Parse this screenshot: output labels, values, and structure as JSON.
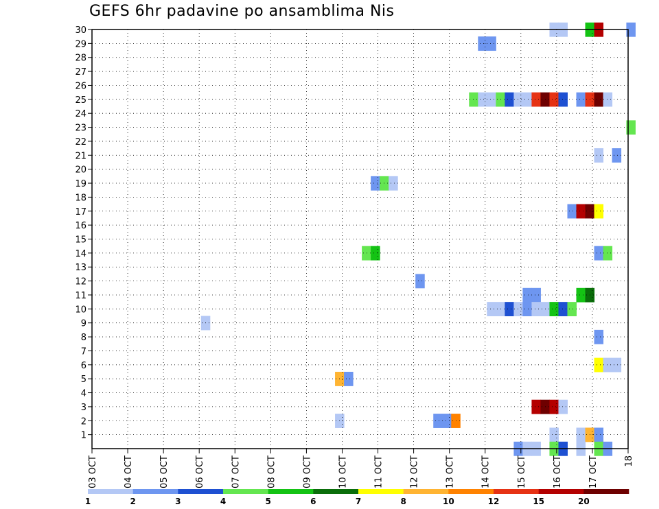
{
  "chart_data": {
    "type": "heatmap",
    "title": "GEFS 6hr padavine po ansamblima Nis",
    "xlabel": "",
    "ylabel": "",
    "x_tick_labels": [
      "03 OCT",
      "04 OCT",
      "05 OCT",
      "06 OCT",
      "07 OCT",
      "08 OCT",
      "09 OCT",
      "10 OCT",
      "11 OCT",
      "12 OCT",
      "13 OCT",
      "14 OCT",
      "15 OCT",
      "16 OCT",
      "17 OCT",
      "18"
    ],
    "y_tick_labels": [
      "1",
      "2",
      "3",
      "4",
      "5",
      "6",
      "7",
      "8",
      "9",
      "10",
      "11",
      "12",
      "13",
      "14",
      "15",
      "16",
      "17",
      "18",
      "19",
      "20",
      "21",
      "22",
      "23",
      "24",
      "25",
      "26",
      "27",
      "28",
      "29",
      "30"
    ],
    "xlim_days": [
      0,
      15
    ],
    "ylim": [
      0,
      30
    ],
    "grid": true,
    "colorbar": {
      "colors": [
        "#b4c8f5",
        "#6e96f0",
        "#1e50d2",
        "#64e650",
        "#14c314",
        "#0a6e0a",
        "#ffff00",
        "#ffb432",
        "#ff8200",
        "#e63214",
        "#b40000",
        "#6e0000"
      ],
      "labels": [
        "1",
        "2",
        "3",
        "4",
        "5",
        "6",
        "7",
        "8",
        "10",
        "12",
        "15",
        "20"
      ]
    },
    "cells": [
      {
        "t": 12.8,
        "member": 30,
        "value": 1
      },
      {
        "t": 13.05,
        "member": 30,
        "value": 1
      },
      {
        "t": 13.8,
        "member": 30,
        "value": 5
      },
      {
        "t": 14.05,
        "member": 30,
        "value": 15
      },
      {
        "t": 14.95,
        "member": 30,
        "value": 2
      },
      {
        "t": 10.8,
        "member": 29,
        "value": 2
      },
      {
        "t": 11.05,
        "member": 29,
        "value": 2
      },
      {
        "t": 10.55,
        "member": 25,
        "value": 4
      },
      {
        "t": 10.8,
        "member": 25,
        "value": 1
      },
      {
        "t": 11.05,
        "member": 25,
        "value": 1
      },
      {
        "t": 11.3,
        "member": 25,
        "value": 4
      },
      {
        "t": 11.55,
        "member": 25,
        "value": 3
      },
      {
        "t": 11.8,
        "member": 25,
        "value": 1
      },
      {
        "t": 12.05,
        "member": 25,
        "value": 1
      },
      {
        "t": 12.3,
        "member": 25,
        "value": 12
      },
      {
        "t": 12.55,
        "member": 25,
        "value": 20
      },
      {
        "t": 12.8,
        "member": 25,
        "value": 12
      },
      {
        "t": 13.05,
        "member": 25,
        "value": 3
      },
      {
        "t": 13.55,
        "member": 25,
        "value": 2
      },
      {
        "t": 13.8,
        "member": 25,
        "value": 12
      },
      {
        "t": 14.05,
        "member": 25,
        "value": 20
      },
      {
        "t": 14.3,
        "member": 25,
        "value": 1
      },
      {
        "t": 14.95,
        "member": 23,
        "value": 4
      },
      {
        "t": 14.05,
        "member": 21,
        "value": 1
      },
      {
        "t": 14.55,
        "member": 21,
        "value": 2
      },
      {
        "t": 7.8,
        "member": 19,
        "value": 2
      },
      {
        "t": 8.05,
        "member": 19,
        "value": 4
      },
      {
        "t": 8.3,
        "member": 19,
        "value": 1
      },
      {
        "t": 13.3,
        "member": 17,
        "value": 2
      },
      {
        "t": 13.55,
        "member": 17,
        "value": 15
      },
      {
        "t": 13.8,
        "member": 17,
        "value": 20
      },
      {
        "t": 14.05,
        "member": 17,
        "value": 7
      },
      {
        "t": 7.55,
        "member": 14,
        "value": 4
      },
      {
        "t": 7.8,
        "member": 14,
        "value": 5
      },
      {
        "t": 14.05,
        "member": 14,
        "value": 2
      },
      {
        "t": 14.3,
        "member": 14,
        "value": 4
      },
      {
        "t": 9.05,
        "member": 12,
        "value": 2
      },
      {
        "t": 12.05,
        "member": 11,
        "value": 2
      },
      {
        "t": 12.3,
        "member": 11,
        "value": 2
      },
      {
        "t": 13.55,
        "member": 11,
        "value": 5
      },
      {
        "t": 13.8,
        "member": 11,
        "value": 6
      },
      {
        "t": 11.05,
        "member": 10,
        "value": 1
      },
      {
        "t": 11.3,
        "member": 10,
        "value": 1
      },
      {
        "t": 11.55,
        "member": 10,
        "value": 3
      },
      {
        "t": 11.8,
        "member": 10,
        "value": 1
      },
      {
        "t": 12.05,
        "member": 10,
        "value": 2
      },
      {
        "t": 12.3,
        "member": 10,
        "value": 1
      },
      {
        "t": 12.55,
        "member": 10,
        "value": 1
      },
      {
        "t": 12.8,
        "member": 10,
        "value": 5
      },
      {
        "t": 13.05,
        "member": 10,
        "value": 3
      },
      {
        "t": 13.3,
        "member": 10,
        "value": 4
      },
      {
        "t": 3.05,
        "member": 9,
        "value": 1
      },
      {
        "t": 14.05,
        "member": 8,
        "value": 2
      },
      {
        "t": 14.05,
        "member": 6,
        "value": 7
      },
      {
        "t": 14.3,
        "member": 6,
        "value": 1
      },
      {
        "t": 14.55,
        "member": 6,
        "value": 1
      },
      {
        "t": 6.8,
        "member": 5,
        "value": 8
      },
      {
        "t": 7.05,
        "member": 5,
        "value": 2
      },
      {
        "t": 12.3,
        "member": 3,
        "value": 15
      },
      {
        "t": 12.55,
        "member": 3,
        "value": 20
      },
      {
        "t": 12.8,
        "member": 3,
        "value": 15
      },
      {
        "t": 13.05,
        "member": 3,
        "value": 1
      },
      {
        "t": 6.8,
        "member": 2,
        "value": 1
      },
      {
        "t": 9.55,
        "member": 2,
        "value": 2
      },
      {
        "t": 9.8,
        "member": 2,
        "value": 2
      },
      {
        "t": 10.05,
        "member": 2,
        "value": 10
      },
      {
        "t": 12.8,
        "member": 1,
        "value": 1
      },
      {
        "t": 13.55,
        "member": 1,
        "value": 1
      },
      {
        "t": 13.8,
        "member": 1,
        "value": 8
      },
      {
        "t": 14.05,
        "member": 1,
        "value": 2
      },
      {
        "t": 11.8,
        "member": 0,
        "value": 2
      },
      {
        "t": 12.05,
        "member": 0,
        "value": 1
      },
      {
        "t": 12.3,
        "member": 0,
        "value": 1
      },
      {
        "t": 12.8,
        "member": 0,
        "value": 4
      },
      {
        "t": 13.05,
        "member": 0,
        "value": 3
      },
      {
        "t": 13.55,
        "member": 0,
        "value": 1
      },
      {
        "t": 14.05,
        "member": 0,
        "value": 4
      },
      {
        "t": 14.3,
        "member": 0,
        "value": 2
      }
    ]
  }
}
